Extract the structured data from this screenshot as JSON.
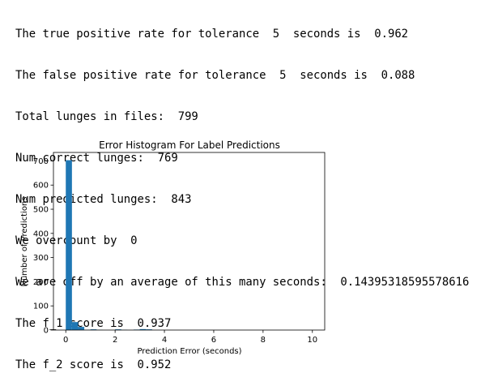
{
  "output": {
    "lines": [
      "The true positive rate for tolerance  5  seconds is  0.962",
      "The false positive rate for tolerance  5  seconds is  0.088",
      "Total lunges in files:  799",
      "Num correct lunges:  769",
      "Num predicted lunges:  843",
      "We overcount by  0",
      "We are off by an average of this many seconds:  0.14395318595578616",
      "The f_1 score is  0.937",
      "The f_2 score is  0.952"
    ]
  },
  "colors": {
    "bar": "#1f77b4",
    "axis": "#000000"
  },
  "chart_data": {
    "type": "bar",
    "title": "Error Histogram For Label Predictions",
    "xlabel": "Prediction Error (seconds)",
    "ylabel": "Number of Predictions",
    "xlim": [
      -0.5,
      10.5
    ],
    "ylim": [
      0,
      735
    ],
    "xticks": [
      0,
      2,
      4,
      6,
      8,
      10
    ],
    "yticks": [
      0,
      100,
      200,
      300,
      400,
      500,
      600,
      700
    ],
    "bins": [
      {
        "start": 0.0,
        "end": 0.25,
        "count": 703
      },
      {
        "start": 0.25,
        "end": 0.5,
        "count": 33
      },
      {
        "start": 0.5,
        "end": 0.75,
        "count": 13
      },
      {
        "start": 0.75,
        "end": 1.0,
        "count": 1
      },
      {
        "start": 1.0,
        "end": 1.25,
        "count": 3
      },
      {
        "start": 1.25,
        "end": 1.5,
        "count": 1
      },
      {
        "start": 2.0,
        "end": 2.25,
        "count": 3
      },
      {
        "start": 2.25,
        "end": 2.5,
        "count": 1
      },
      {
        "start": 2.75,
        "end": 3.0,
        "count": 2
      },
      {
        "start": 3.0,
        "end": 3.25,
        "count": 4
      },
      {
        "start": 3.25,
        "end": 3.5,
        "count": 3
      }
    ]
  }
}
